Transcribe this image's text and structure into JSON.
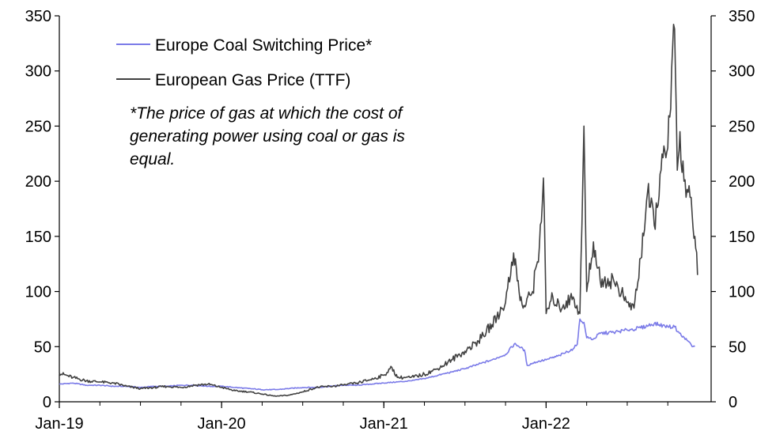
{
  "chart_data": {
    "type": "line",
    "title": "",
    "xlabel": "",
    "ylabel": "",
    "ylim": [
      0,
      350
    ],
    "yticks": [
      0,
      50,
      100,
      150,
      200,
      250,
      300,
      350
    ],
    "x_range_months": [
      0,
      47
    ],
    "x_ticks": [
      {
        "m": 0,
        "label": "Jan-19"
      },
      {
        "m": 12,
        "label": "Jan-20"
      },
      {
        "m": 24,
        "label": "Jan-21"
      },
      {
        "m": 36,
        "label": "Jan-22"
      }
    ],
    "grid": false,
    "legend_position": "top-left",
    "annotation": [
      "*The price of gas at which the cost of",
      "generating power using coal or gas is",
      "equal."
    ],
    "series": [
      {
        "name": "Europe Coal Switching Price*",
        "color": "#7B7BE8",
        "points": [
          [
            0,
            16
          ],
          [
            1,
            17
          ],
          [
            2,
            15
          ],
          [
            3,
            15
          ],
          [
            4,
            14
          ],
          [
            5,
            14
          ],
          [
            6,
            13
          ],
          [
            7,
            14
          ],
          [
            8,
            14
          ],
          [
            9,
            15
          ],
          [
            10,
            15
          ],
          [
            11,
            14
          ],
          [
            12,
            14
          ],
          [
            13,
            13
          ],
          [
            14,
            12
          ],
          [
            15,
            11
          ],
          [
            16,
            11
          ],
          [
            17,
            12
          ],
          [
            18,
            13
          ],
          [
            19,
            13
          ],
          [
            20,
            14
          ],
          [
            21,
            15
          ],
          [
            22,
            15
          ],
          [
            23,
            16
          ],
          [
            24,
            17
          ],
          [
            25,
            18
          ],
          [
            26,
            19
          ],
          [
            27,
            21
          ],
          [
            28,
            24
          ],
          [
            29,
            27
          ],
          [
            30,
            30
          ],
          [
            31,
            34
          ],
          [
            32,
            38
          ],
          [
            33,
            43
          ],
          [
            33.7,
            53
          ],
          [
            34,
            50
          ],
          [
            34.4,
            47
          ],
          [
            34.6,
            33
          ],
          [
            35,
            35
          ],
          [
            35.5,
            37
          ],
          [
            36,
            38
          ],
          [
            37,
            42
          ],
          [
            38,
            48
          ],
          [
            38.3,
            52
          ],
          [
            38.5,
            75
          ],
          [
            38.8,
            72
          ],
          [
            39,
            58
          ],
          [
            39.5,
            57
          ],
          [
            40,
            62
          ],
          [
            41,
            63
          ],
          [
            42,
            65
          ],
          [
            43,
            67
          ],
          [
            44,
            71
          ],
          [
            45,
            68
          ],
          [
            45.5,
            68
          ],
          [
            46,
            60
          ],
          [
            46.5,
            55
          ],
          [
            46.8,
            50
          ],
          [
            47,
            50
          ]
        ]
      },
      {
        "name": "European Gas Price (TTF)",
        "color": "#404040",
        "points": [
          [
            0,
            26
          ],
          [
            1,
            22
          ],
          [
            2,
            19
          ],
          [
            3,
            18
          ],
          [
            4,
            17
          ],
          [
            5,
            14
          ],
          [
            6,
            12
          ],
          [
            7,
            13
          ],
          [
            8,
            14
          ],
          [
            9,
            13
          ],
          [
            10,
            15
          ],
          [
            11,
            16
          ],
          [
            12,
            13
          ],
          [
            13,
            10
          ],
          [
            14,
            9
          ],
          [
            15,
            7
          ],
          [
            16,
            5
          ],
          [
            17,
            6
          ],
          [
            18,
            9
          ],
          [
            19,
            13
          ],
          [
            20,
            14
          ],
          [
            21,
            15
          ],
          [
            22,
            17
          ],
          [
            23,
            20
          ],
          [
            24,
            24
          ],
          [
            24.6,
            31
          ],
          [
            25,
            22
          ],
          [
            26,
            22
          ],
          [
            27,
            25
          ],
          [
            28,
            30
          ],
          [
            29,
            38
          ],
          [
            30,
            46
          ],
          [
            31,
            55
          ],
          [
            32,
            70
          ],
          [
            33,
            90
          ],
          [
            33.6,
            135
          ],
          [
            34,
            100
          ],
          [
            34.3,
            85
          ],
          [
            35,
            100
          ],
          [
            35.5,
            140
          ],
          [
            35.8,
            203
          ],
          [
            36,
            80
          ],
          [
            36.5,
            95
          ],
          [
            37,
            85
          ],
          [
            38,
            95
          ],
          [
            38.5,
            80
          ],
          [
            38.8,
            250
          ],
          [
            39,
            100
          ],
          [
            39.5,
            145
          ],
          [
            40,
            110
          ],
          [
            41,
            110
          ],
          [
            42,
            90
          ],
          [
            42.5,
            85
          ],
          [
            43,
            130
          ],
          [
            43.5,
            190
          ],
          [
            44,
            160
          ],
          [
            44.5,
            210
          ],
          [
            45,
            230
          ],
          [
            45.5,
            338
          ],
          [
            45.7,
            210
          ],
          [
            45.9,
            245
          ],
          [
            46.2,
            200
          ],
          [
            46.5,
            190
          ],
          [
            46.8,
            170
          ],
          [
            47,
            150
          ],
          [
            47.2,
            115
          ]
        ]
      }
    ]
  }
}
